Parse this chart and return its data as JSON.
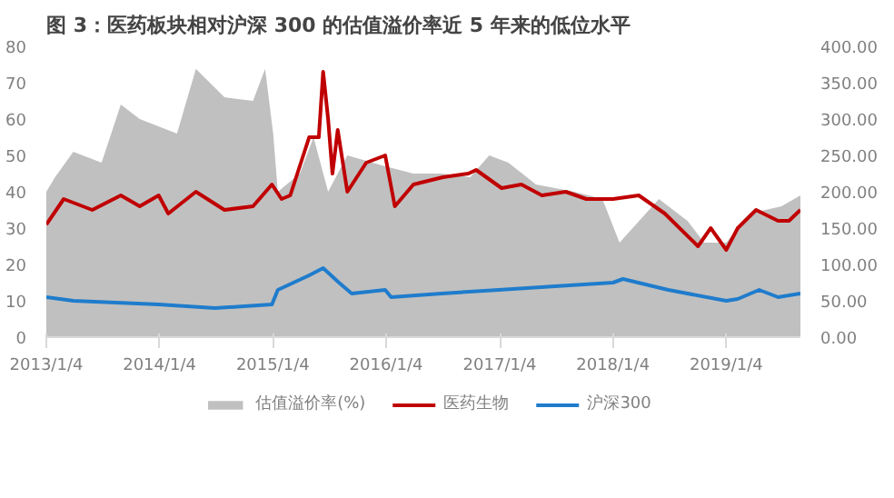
{
  "chart_data": {
    "type": "line",
    "title": "图 3：医药板块相对沪深 300 的估值溢价率近 5 年来的低位水平",
    "xlim": [
      "2013-01-04",
      "2019-08-31"
    ],
    "xticks": [
      {
        "value": "2013-01-04",
        "label": "2013/1/4"
      },
      {
        "value": "2014-01-04",
        "label": "2014/1/4"
      },
      {
        "value": "2015-01-04",
        "label": "2015/1/4"
      },
      {
        "value": "2016-01-04",
        "label": "2016/1/4"
      },
      {
        "value": "2017-01-04",
        "label": "2017/1/4"
      },
      {
        "value": "2018-01-04",
        "label": "2018/1/4"
      },
      {
        "value": "2019-01-04",
        "label": "2019/1/4"
      }
    ],
    "ylim": [
      0,
      80
    ],
    "yticks": [
      0,
      10,
      20,
      30,
      40,
      50,
      60,
      70,
      80
    ],
    "y2lim": [
      0,
      400
    ],
    "y2ticks": [
      {
        "value": 0,
        "label": "0.00"
      },
      {
        "value": 50,
        "label": "50.00"
      },
      {
        "value": 100,
        "label": "100.00"
      },
      {
        "value": 150,
        "label": "150.00"
      },
      {
        "value": 200,
        "label": "200.00"
      },
      {
        "value": 250,
        "label": "250.00"
      },
      {
        "value": 300,
        "label": "300.00"
      },
      {
        "value": 350,
        "label": "350.00"
      },
      {
        "value": 400,
        "label": "400.00"
      }
    ],
    "grid": false,
    "legend": "bottom",
    "series": [
      {
        "name": "估值溢价率(%)",
        "type": "area",
        "axis": "y2",
        "color": "#c0c0c0",
        "x": [
          "2013-01-04",
          "2013-02-01",
          "2013-04-01",
          "2013-07-01",
          "2013-09-01",
          "2013-11-01",
          "2014-03-01",
          "2014-05-01",
          "2014-08-01",
          "2014-11-01",
          "2014-12-10",
          "2015-01-05",
          "2015-01-20",
          "2015-04-01",
          "2015-05-15",
          "2015-07-01",
          "2015-09-01",
          "2016-01-01",
          "2016-04-01",
          "2016-07-01",
          "2016-10-01",
          "2016-12-01",
          "2017-02-01",
          "2017-05-01",
          "2017-09-01",
          "2017-12-01",
          "2018-01-25",
          "2018-06-01",
          "2018-09-01",
          "2018-10-25",
          "2019-01-04",
          "2019-03-20",
          "2019-07-01",
          "2019-08-31"
        ],
        "values": [
          200,
          220,
          255,
          240,
          320,
          300,
          280,
          369,
          330,
          325,
          369,
          280,
          200,
          225,
          275,
          200,
          250,
          235,
          225,
          225,
          220,
          250,
          240,
          210,
          200,
          190,
          130,
          190,
          160,
          130,
          130,
          170,
          180,
          195
        ]
      },
      {
        "name": "医药生物",
        "axis": "y",
        "color": "#c00000",
        "x": [
          "2013-01-04",
          "2013-03-01",
          "2013-06-01",
          "2013-09-01",
          "2013-11-01",
          "2014-01-01",
          "2014-02-01",
          "2014-05-01",
          "2014-08-01",
          "2014-11-01",
          "2015-01-01",
          "2015-02-01",
          "2015-03-01",
          "2015-05-01",
          "2015-06-01",
          "2015-06-15",
          "2015-07-01",
          "2015-07-15",
          "2015-08-01",
          "2015-09-01",
          "2015-11-01",
          "2016-01-01",
          "2016-02-01",
          "2016-04-01",
          "2016-07-05",
          "2016-09-25",
          "2016-10-20",
          "2017-01-10",
          "2017-03-15",
          "2017-05-20",
          "2017-08-05",
          "2017-10-10",
          "2018-01-04",
          "2018-03-28",
          "2018-06-20",
          "2018-10-05",
          "2018-11-15",
          "2019-01-04",
          "2019-02-10",
          "2019-04-10",
          "2019-06-20",
          "2019-07-25",
          "2019-08-31"
        ],
        "values": [
          31,
          38,
          35,
          39,
          36,
          39,
          34,
          40,
          35,
          36,
          42,
          38,
          39,
          55,
          55,
          73,
          60,
          45,
          57,
          40,
          48,
          50,
          36,
          42,
          44,
          45,
          46,
          41,
          42,
          39,
          40,
          38,
          38,
          39,
          34,
          25,
          30,
          24,
          30,
          35,
          32,
          32,
          35
        ]
      },
      {
        "name": "沪深300",
        "axis": "y",
        "color": "#1f7ccc",
        "x": [
          "2013-01-04",
          "2013-04-01",
          "2014-01-01",
          "2014-07-01",
          "2015-01-01",
          "2015-01-20",
          "2015-05-01",
          "2015-06-15",
          "2015-08-05",
          "2015-09-15",
          "2016-01-01",
          "2016-01-20",
          "2016-07-01",
          "2017-01-01",
          "2017-07-01",
          "2018-01-04",
          "2018-02-05",
          "2018-07-01",
          "2019-01-04",
          "2019-02-10",
          "2019-04-20",
          "2019-06-20",
          "2019-08-31"
        ],
        "values": [
          11,
          10,
          9,
          8,
          9,
          13,
          17,
          19,
          15,
          12,
          13,
          11,
          12,
          13,
          14,
          15,
          16,
          13,
          10,
          10.5,
          13,
          11,
          12
        ]
      }
    ]
  }
}
